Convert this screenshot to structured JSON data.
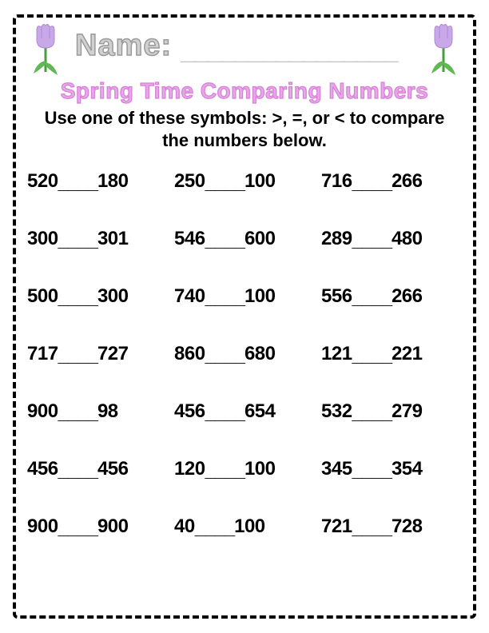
{
  "header": {
    "name_label": "Name:",
    "name_line": "________________"
  },
  "title": "Spring Time Comparing Numbers",
  "instructions": "Use one of these symbols:  >, =, or < to compare the numbers below.",
  "blank": "____",
  "colors": {
    "title_fill": "#e6a8e6",
    "title_stroke": "#d77fd7",
    "name_fill": "#d1d1d1",
    "name_stroke": "#9a9a9a",
    "border": "#000000",
    "tulip_petal": "#c9a8e8",
    "tulip_petal_dark": "#b088d8",
    "tulip_stem": "#4a9d3f",
    "tulip_leaf": "#5fb854"
  },
  "problems": [
    [
      {
        "a": "520",
        "b": "180"
      },
      {
        "a": "250",
        "b": "100"
      },
      {
        "a": "716",
        "b": "266"
      }
    ],
    [
      {
        "a": "300",
        "b": "301"
      },
      {
        "a": "546",
        "b": "600"
      },
      {
        "a": "289",
        "b": "480"
      }
    ],
    [
      {
        "a": "500",
        "b": "300"
      },
      {
        "a": "740",
        "b": "100"
      },
      {
        "a": "556",
        "b": "266"
      }
    ],
    [
      {
        "a": "717",
        "b": "727"
      },
      {
        "a": "860",
        "b": "680"
      },
      {
        "a": "121",
        "b": "221"
      }
    ],
    [
      {
        "a": "900",
        "b": "98"
      },
      {
        "a": "456",
        "b": "654"
      },
      {
        "a": "532",
        "b": "279"
      }
    ],
    [
      {
        "a": "456",
        "b": "456"
      },
      {
        "a": "120",
        "b": "100"
      },
      {
        "a": "345",
        "b": "354"
      }
    ],
    [
      {
        "a": "900",
        "b": "900"
      },
      {
        "a": "40",
        "b": "100"
      },
      {
        "a": "721",
        "b": "728"
      }
    ]
  ]
}
